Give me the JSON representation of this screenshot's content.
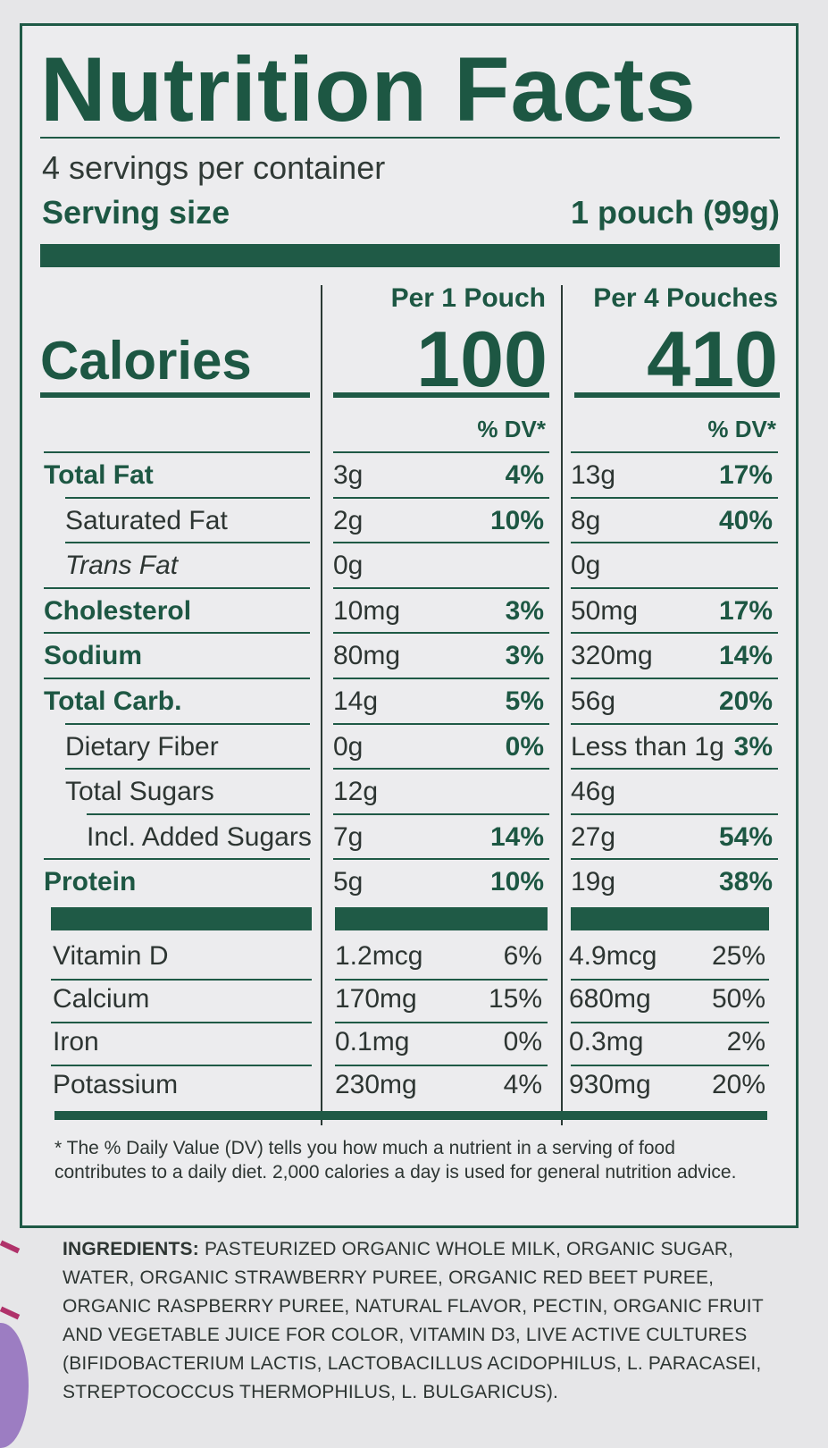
{
  "title": "Nutrition Facts",
  "servings_per_container": "4 servings per container",
  "serving_size": {
    "label": "Serving size",
    "value": "1 pouch (99g)"
  },
  "columns": [
    {
      "heading": "Per 1 Pouch",
      "calories": "100"
    },
    {
      "heading": "Per 4 Pouches",
      "calories": "410"
    }
  ],
  "calories_label": "Calories",
  "dv_header": "% DV*",
  "nutrients": [
    {
      "name": "Total Fat",
      "bold": true,
      "indent": 0,
      "c1_amt": "3g",
      "c1_dv": "4%",
      "c2_amt": "13g",
      "c2_dv": "17%"
    },
    {
      "name": "Saturated Fat",
      "bold": false,
      "indent": 1,
      "c1_amt": "2g",
      "c1_dv": "10%",
      "c2_amt": "8g",
      "c2_dv": "40%"
    },
    {
      "name": "Trans Fat",
      "bold": false,
      "italic": true,
      "indent": 1,
      "c1_amt": "0g",
      "c1_dv": "",
      "c2_amt": "0g",
      "c2_dv": ""
    },
    {
      "name": "Cholesterol",
      "bold": true,
      "indent": 0,
      "c1_amt": "10mg",
      "c1_dv": "3%",
      "c2_amt": "50mg",
      "c2_dv": "17%"
    },
    {
      "name": "Sodium",
      "bold": true,
      "indent": 0,
      "c1_amt": "80mg",
      "c1_dv": "3%",
      "c2_amt": "320mg",
      "c2_dv": "14%"
    },
    {
      "name": "Total Carb.",
      "bold": true,
      "indent": 0,
      "c1_amt": "14g",
      "c1_dv": "5%",
      "c2_amt": "56g",
      "c2_dv": "20%"
    },
    {
      "name": "Dietary Fiber",
      "bold": false,
      "indent": 1,
      "c1_amt": "0g",
      "c1_dv": "0%",
      "c2_amt": "Less than 1g",
      "c2_dv": "3%"
    },
    {
      "name": "Total Sugars",
      "bold": false,
      "indent": 1,
      "c1_amt": "12g",
      "c1_dv": "",
      "c2_amt": "46g",
      "c2_dv": ""
    },
    {
      "name": "Incl. Added Sugars",
      "bold": false,
      "indent": 2,
      "c1_amt": "7g",
      "c1_dv": "14%",
      "c2_amt": "27g",
      "c2_dv": "54%"
    },
    {
      "name": "Protein",
      "bold": true,
      "indent": 0,
      "c1_amt": "5g",
      "c1_dv": "10%",
      "c2_amt": "19g",
      "c2_dv": "38%"
    }
  ],
  "vitamins": [
    {
      "name": "Vitamin D",
      "c1_amt": "1.2mcg",
      "c1_dv": "6%",
      "c2_amt": "4.9mcg",
      "c2_dv": "25%"
    },
    {
      "name": "Calcium",
      "c1_amt": "170mg",
      "c1_dv": "15%",
      "c2_amt": "680mg",
      "c2_dv": "50%"
    },
    {
      "name": "Iron",
      "c1_amt": "0.1mg",
      "c1_dv": "0%",
      "c2_amt": "0.3mg",
      "c2_dv": "2%"
    },
    {
      "name": "Potassium",
      "c1_amt": "230mg",
      "c1_dv": "4%",
      "c2_amt": "930mg",
      "c2_dv": "20%"
    }
  ],
  "footnote": "* The % Daily Value (DV) tells you how much a nutrient in a serving of food contributes to a daily diet. 2,000 calories a day is used for general nutrition advice.",
  "ingredients": {
    "label": "INGREDIENTS:",
    "text": " PASTEURIZED ORGANIC WHOLE MILK, ORGANIC SUGAR, WATER, ORGANIC STRAWBERRY PUREE, ORGANIC RED BEET PUREE, ORGANIC RASPBERRY PUREE, NATURAL FLAVOR, PECTIN, ORGANIC FRUIT AND VEGETABLE JUICE FOR COLOR, VITAMIN D3, LIVE ACTIVE CULTURES (BIFIDOBACTERIUM LACTIS, LACTOBACILLUS ACIDOPHILUS, L. PARACASEI, STREPTOCOCCUS THERMOPHILUS, L. BULGARICUS)."
  }
}
